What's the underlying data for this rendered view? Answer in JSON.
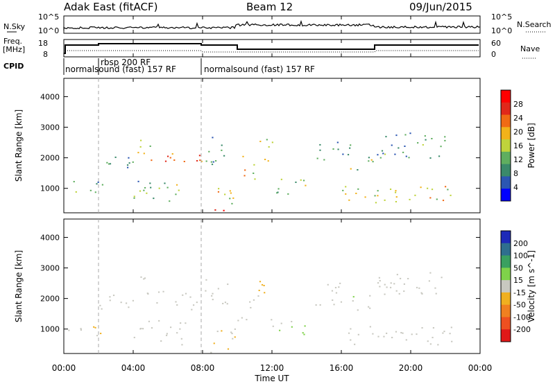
{
  "header": {
    "title": "Adak East (fitACF)",
    "beam": "Beam 12",
    "date": "09/Jun/2015"
  },
  "noise_panel": {
    "left_label": "N.Sky",
    "right_label": "N.Search",
    "left_ticks": [
      "10^5",
      "10^0"
    ],
    "right_ticks": [
      "10^5",
      "10^0"
    ]
  },
  "freq_panel": {
    "left_label_line1": "Freq.",
    "left_label_line2": "[MHz]",
    "left_ticks": [
      "18",
      "8"
    ],
    "right_label": "Nave",
    "right_ticks": [
      "60",
      "0"
    ]
  },
  "cpid_panel": {
    "label": "CPID",
    "modes": [
      {
        "start": "00:00",
        "text": "normalsound (fast) 157 RF"
      },
      {
        "start": "02:00",
        "text": "rbsp 200 RF"
      },
      {
        "start": "08:00",
        "text": "normalsound (fast) 157 RF"
      }
    ]
  },
  "power_panel": {
    "ylabel": "Slant Range [km]",
    "yticks": [
      "4000",
      "3000",
      "2000",
      "1000"
    ],
    "colorbar_label": "Power [dB]",
    "colorbar_ticks": [
      "28",
      "24",
      "20",
      "16",
      "12",
      "8",
      "4"
    ],
    "colors": [
      "#0000ff",
      "#2b56b2",
      "#3a8a6a",
      "#5fae5f",
      "#bfd33b",
      "#f2b21a",
      "#f06a14",
      "#e0281a",
      "#ff0000"
    ]
  },
  "velocity_panel": {
    "ylabel": "Slant Range [km]",
    "yticks": [
      "4000",
      "3000",
      "2000",
      "1000"
    ],
    "colorbar_label": "Velocity [m s^-1]",
    "colorbar_ticks": [
      "200",
      "100",
      "50",
      "15",
      "-15",
      "-50",
      "-100",
      "-200"
    ],
    "colors": [
      "#1e2ab8",
      "#2f6e8e",
      "#3aa060",
      "#7fd24a",
      "#c8c8c0",
      "#f0b020",
      "#f08020",
      "#ee5020",
      "#e01818"
    ]
  },
  "xaxis": {
    "label": "Time UT",
    "ticks": [
      "00:00",
      "04:00",
      "08:00",
      "12:00",
      "16:00",
      "20:00",
      "00:00"
    ]
  },
  "chart_data": {
    "type": "heatmap",
    "title": "Adak East (fitACF)",
    "xlabel": "Time UT",
    "ylabel": "Slant Range [km]",
    "xlim_hours": [
      0,
      24
    ],
    "ylim_km": [
      200,
      4600
    ],
    "power_range_db": [
      0,
      32
    ],
    "velocity_range": [
      -250,
      250
    ],
    "scatter_regions": [
      {
        "t0": 0.2,
        "t1": 2.2,
        "r0": 800,
        "r1": 1300,
        "power": 11,
        "velocity": -10
      },
      {
        "t0": 2.0,
        "t1": 4.0,
        "r0": 1600,
        "r1": 2200,
        "power": 9,
        "velocity": -5
      },
      {
        "t0": 4.0,
        "t1": 5.0,
        "r0": 2100,
        "r1": 2800,
        "power": 18,
        "velocity": 0
      },
      {
        "t0": 5.0,
        "t1": 7.0,
        "r0": 1800,
        "r1": 2300,
        "power": 24,
        "velocity": -5
      },
      {
        "t0": 7.0,
        "t1": 8.0,
        "r0": 1600,
        "r1": 2100,
        "power": 27,
        "velocity": -10
      },
      {
        "t0": 4.0,
        "t1": 7.0,
        "r0": 500,
        "r1": 1300,
        "power": 12,
        "velocity": -8
      },
      {
        "t0": 8.0,
        "t1": 9.5,
        "r0": 1800,
        "r1": 2700,
        "power": 9,
        "velocity": -5
      },
      {
        "t0": 8.5,
        "t1": 10.0,
        "r0": 500,
        "r1": 1200,
        "power": 18,
        "velocity": -20
      },
      {
        "t0": 8.0,
        "t1": 10.0,
        "r0": 250,
        "r1": 400,
        "power": 26,
        "velocity": -40
      },
      {
        "t0": 10.0,
        "t1": 11.0,
        "r0": 1300,
        "r1": 2100,
        "power": 18,
        "velocity": -20
      },
      {
        "t0": 11.0,
        "t1": 12.0,
        "r0": 1900,
        "r1": 2700,
        "power": 16,
        "velocity": -30
      },
      {
        "t0": 11.8,
        "t1": 14.0,
        "r0": 800,
        "r1": 1400,
        "power": 14,
        "velocity": 40
      },
      {
        "t0": 14.5,
        "t1": 16.5,
        "r0": 1800,
        "r1": 2600,
        "power": 10,
        "velocity": 0
      },
      {
        "t0": 16.5,
        "t1": 18.0,
        "r0": 1600,
        "r1": 2200,
        "power": 13,
        "velocity": 20
      },
      {
        "t0": 18.0,
        "t1": 22.0,
        "r0": 2000,
        "r1": 2900,
        "power": 10,
        "velocity": 0
      },
      {
        "t0": 16.0,
        "t1": 22.5,
        "r0": 500,
        "r1": 1100,
        "power": 16,
        "velocity": -5
      }
    ]
  }
}
